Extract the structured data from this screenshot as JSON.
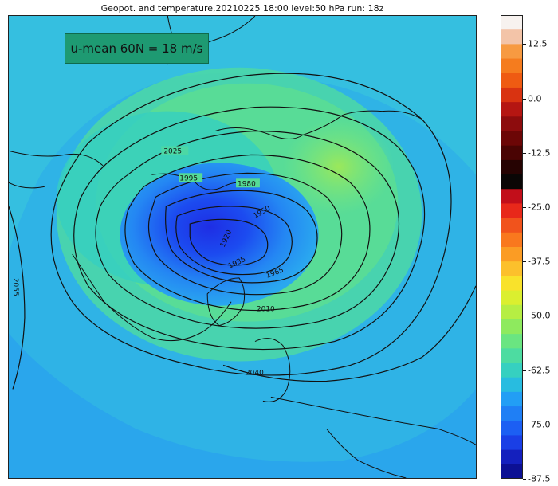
{
  "title": "Geopot. and temperature,20210225 18:00 level:50 hPa run: 18z",
  "info_box": "u-mean 60N = 18 m/s",
  "contour_labels": [
    "2025",
    "1995",
    "1980",
    "1950",
    "1920",
    "1935",
    "1965",
    "2010",
    "2040",
    "2055"
  ],
  "colorbar": {
    "ticks": [
      "12.5",
      "0.0",
      "-12.5",
      "-25.0",
      "-37.5",
      "-50.0",
      "-62.5",
      "-75.0",
      "-87.5"
    ],
    "colors": [
      "#f7f2ef",
      "#f3c4a8",
      "#f79a41",
      "#f57c1e",
      "#ef5b12",
      "#d93311",
      "#b51612",
      "#8d0c0d",
      "#6c0606",
      "#4a0403",
      "#260302",
      "#0a0605",
      "#c20e1a",
      "#e8281a",
      "#f1531c",
      "#f9781e",
      "#fb9c24",
      "#fcc02c",
      "#f9e22b",
      "#dbef2f",
      "#b6ee43",
      "#8eea5e",
      "#6ae581",
      "#4ddca1",
      "#36d0c0",
      "#28bce0",
      "#229ef5",
      "#1f7ff5",
      "#1c5ff3",
      "#1a3fe6",
      "#1420be",
      "#0c1094"
    ]
  }
}
